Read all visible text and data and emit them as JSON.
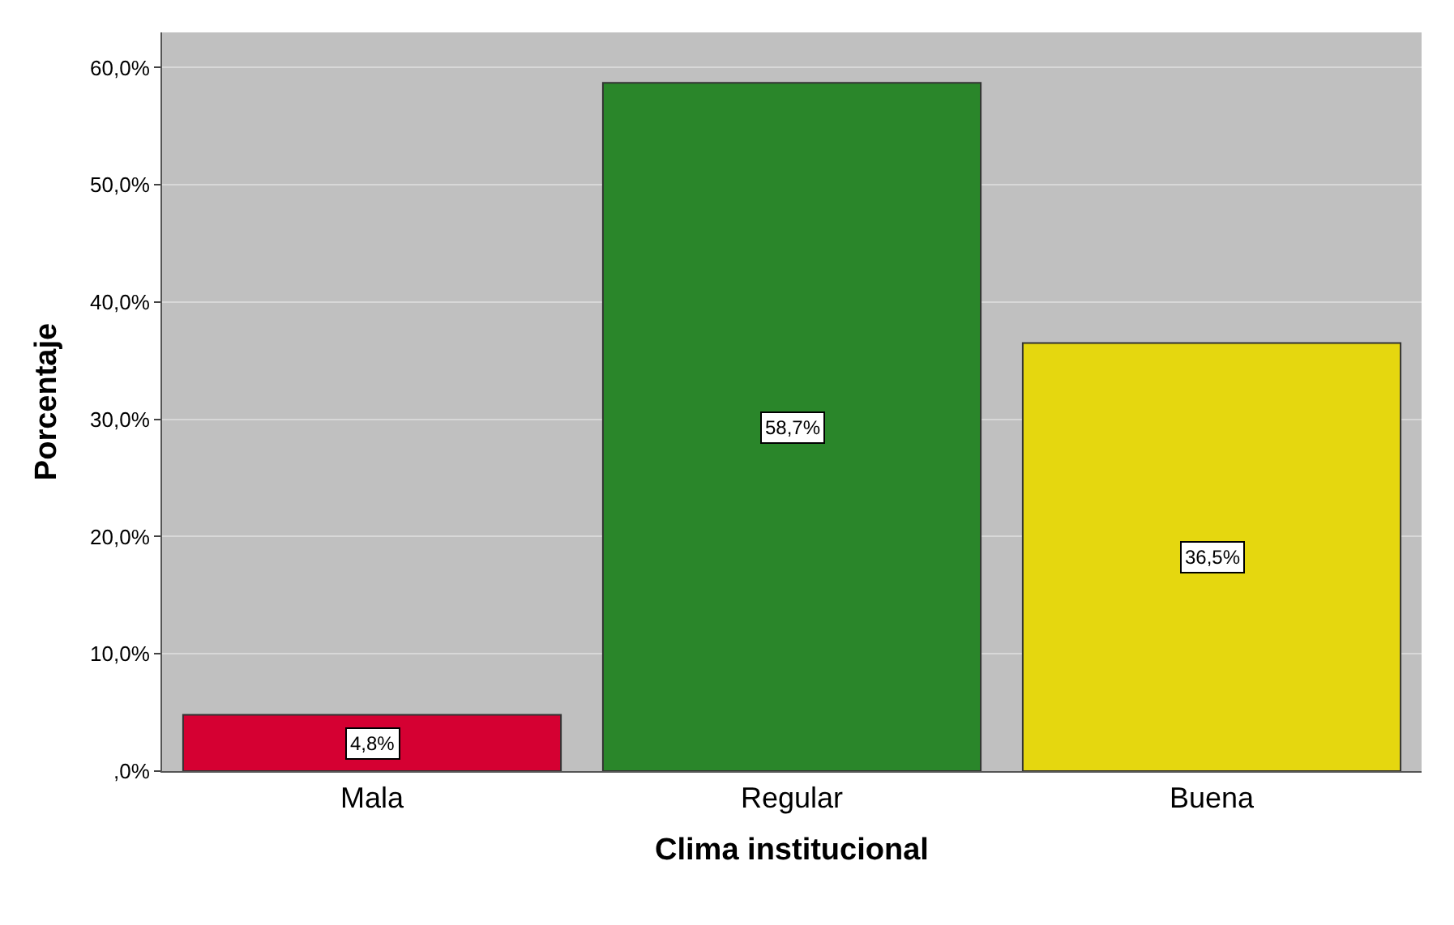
{
  "chart_data": {
    "type": "bar",
    "xlabel": "Clima institucional",
    "ylabel": "Porcentaje",
    "categories": [
      "Mala",
      "Regular",
      "Buena"
    ],
    "values": [
      4.8,
      58.7,
      36.5
    ],
    "colors": [
      "#d50032",
      "#2a862a",
      "#e5d70f"
    ],
    "value_labels": [
      "4,8%",
      "58,7%",
      "36,5%"
    ],
    "ylim": [
      0,
      63
    ],
    "yticks": [
      {
        "value": 0,
        "label": ",0%"
      },
      {
        "value": 10,
        "label": "10,0%"
      },
      {
        "value": 20,
        "label": "20,0%"
      },
      {
        "value": 30,
        "label": "30,0%"
      },
      {
        "value": 40,
        "label": "40,0%"
      },
      {
        "value": 50,
        "label": "50,0%"
      },
      {
        "value": 60,
        "label": "60,0%"
      }
    ],
    "grid": "y"
  }
}
